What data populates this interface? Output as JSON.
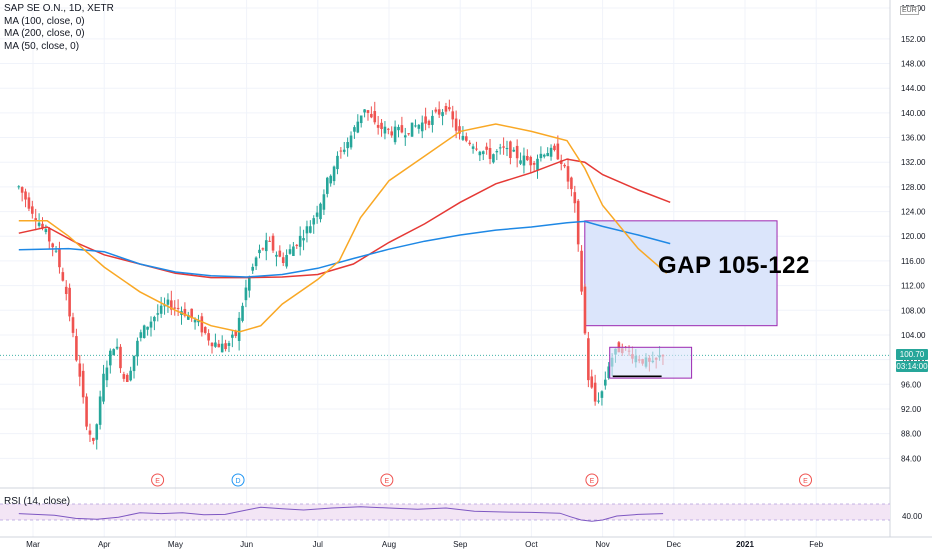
{
  "header": {
    "symbol_line": "SAP SE O.N., 1D, XETR",
    "indicators": [
      "MA (100, close, 0)",
      "MA (200, close, 0)",
      "MA (50, close, 0)"
    ],
    "currency": "EUR"
  },
  "annotation": {
    "gap_label": "GAP 105-122"
  },
  "rsi": {
    "label": "RSI (14, close)"
  },
  "price_tags": {
    "close": "100.70",
    "other": "03:14:00"
  },
  "colors": {
    "up": "#26a69a",
    "down": "#ef5350",
    "ma100": "#e53935",
    "ma200": "#1e88e5",
    "ma50": "#f9a825",
    "gap_fill": "#dbe5fb",
    "gap_stroke": "#9c27b0",
    "rsi_line": "#7e57c2"
  },
  "event_markers": [
    {
      "letter": "E",
      "month_pos": 1.75
    },
    {
      "letter": "D",
      "month_pos": 2.88
    },
    {
      "letter": "E",
      "month_pos": 4.97
    },
    {
      "letter": "E",
      "month_pos": 7.85
    },
    {
      "letter": "E",
      "month_pos": 10.85
    }
  ],
  "chart_data": {
    "type": "candlestick",
    "y_axis": {
      "min": 80,
      "max": 157,
      "unit": "EUR",
      "ticks": [
        "84.00",
        "88.00",
        "92.00",
        "96.00",
        "100.00",
        "104.00",
        "108.00",
        "112.00",
        "116.00",
        "120.00",
        "124.00",
        "128.00",
        "132.00",
        "136.00",
        "140.00",
        "144.00",
        "148.00",
        "152.00",
        "157.00"
      ]
    },
    "x_axis": {
      "ticks": [
        "Mar",
        "Apr",
        "May",
        "Jun",
        "Jul",
        "Aug",
        "Sep",
        "Oct",
        "Nov",
        "Dec",
        "2021",
        "Feb"
      ]
    },
    "price_path": [
      [
        -0.2,
        128
      ],
      [
        0.1,
        122
      ],
      [
        0.3,
        118
      ],
      [
        0.45,
        112
      ],
      [
        0.6,
        101
      ],
      [
        0.75,
        90
      ],
      [
        0.85,
        86
      ],
      [
        1.0,
        98
      ],
      [
        1.15,
        103
      ],
      [
        1.3,
        96
      ],
      [
        1.5,
        104
      ],
      [
        1.7,
        107
      ],
      [
        1.9,
        109
      ],
      [
        2.1,
        108
      ],
      [
        2.3,
        106
      ],
      [
        2.5,
        103
      ],
      [
        2.7,
        102
      ],
      [
        2.85,
        104
      ],
      [
        3.0,
        112
      ],
      [
        3.15,
        117
      ],
      [
        3.3,
        119
      ],
      [
        3.5,
        116
      ],
      [
        3.7,
        119
      ],
      [
        3.9,
        122
      ],
      [
        4.05,
        126
      ],
      [
        4.2,
        131
      ],
      [
        4.35,
        134
      ],
      [
        4.5,
        137
      ],
      [
        4.65,
        141
      ],
      [
        4.8,
        138
      ],
      [
        5.0,
        137
      ],
      [
        5.2,
        137
      ],
      [
        5.4,
        138
      ],
      [
        5.6,
        139
      ],
      [
        5.8,
        141
      ],
      [
        6.0,
        136
      ],
      [
        6.2,
        135
      ],
      [
        6.4,
        133
      ],
      [
        6.6,
        134
      ],
      [
        6.8,
        133
      ],
      [
        7.0,
        132
      ],
      [
        7.2,
        134
      ],
      [
        7.4,
        133
      ],
      [
        7.6,
        126
      ],
      [
        7.7,
        112
      ],
      [
        7.8,
        97
      ],
      [
        7.9,
        93
      ],
      [
        8.0,
        95
      ],
      [
        8.1,
        100
      ],
      [
        8.25,
        102
      ],
      [
        8.4,
        101
      ],
      [
        8.55,
        100
      ],
      [
        8.7,
        99
      ],
      [
        8.85,
        101
      ]
    ],
    "series": [
      {
        "name": "MA (100, close, 0)",
        "points": [
          [
            -0.2,
            120.5
          ],
          [
            0.2,
            121.5
          ],
          [
            0.6,
            119
          ],
          [
            1.0,
            117
          ],
          [
            1.5,
            115.5
          ],
          [
            2.0,
            114
          ],
          [
            2.5,
            113.3
          ],
          [
            3.0,
            113.3
          ],
          [
            3.5,
            113.4
          ],
          [
            4.0,
            113.8
          ],
          [
            4.5,
            115.5
          ],
          [
            5.0,
            119
          ],
          [
            5.5,
            122
          ],
          [
            6.0,
            125.5
          ],
          [
            6.5,
            128.5
          ],
          [
            7.0,
            130.3
          ],
          [
            7.5,
            132.5
          ],
          [
            7.75,
            132
          ],
          [
            8.0,
            130
          ],
          [
            8.5,
            127.5
          ],
          [
            8.95,
            125.5
          ]
        ]
      },
      {
        "name": "MA (200, close, 0)",
        "points": [
          [
            -0.2,
            117.8
          ],
          [
            0.5,
            118
          ],
          [
            1.0,
            117.5
          ],
          [
            1.5,
            115.5
          ],
          [
            2.0,
            114.2
          ],
          [
            2.5,
            113.6
          ],
          [
            3.0,
            113.4
          ],
          [
            3.5,
            113.8
          ],
          [
            4.0,
            114.8
          ],
          [
            4.5,
            116.4
          ],
          [
            5.0,
            117.9
          ],
          [
            5.5,
            119.2
          ],
          [
            6.0,
            120.2
          ],
          [
            6.5,
            121
          ],
          [
            7.0,
            121.5
          ],
          [
            7.5,
            122.2
          ],
          [
            7.75,
            122.4
          ],
          [
            8.0,
            121.6
          ],
          [
            8.5,
            120.2
          ],
          [
            8.95,
            118.8
          ]
        ]
      },
      {
        "name": "MA (50, close, 0)",
        "points": [
          [
            -0.2,
            122.5
          ],
          [
            0.2,
            122.5
          ],
          [
            0.5,
            120
          ],
          [
            1.0,
            115
          ],
          [
            1.5,
            111
          ],
          [
            2.0,
            108
          ],
          [
            2.5,
            105.5
          ],
          [
            2.9,
            104.5
          ],
          [
            3.2,
            105.5
          ],
          [
            3.5,
            109
          ],
          [
            4.0,
            113
          ],
          [
            4.3,
            116
          ],
          [
            4.6,
            123
          ],
          [
            5.0,
            129
          ],
          [
            5.5,
            133
          ],
          [
            6.0,
            137
          ],
          [
            6.5,
            138.2
          ],
          [
            7.0,
            137
          ],
          [
            7.5,
            135.5
          ],
          [
            7.75,
            131
          ],
          [
            8.0,
            125
          ],
          [
            8.5,
            118
          ],
          [
            8.9,
            114
          ]
        ]
      },
      {
        "name": "RSI (14, close)",
        "points": [
          [
            -0.2,
            46
          ],
          [
            0.3,
            42
          ],
          [
            0.6,
            34
          ],
          [
            0.9,
            32
          ],
          [
            1.2,
            37
          ],
          [
            1.5,
            48
          ],
          [
            1.8,
            46
          ],
          [
            2.1,
            48
          ],
          [
            2.4,
            43
          ],
          [
            2.7,
            44
          ],
          [
            3.0,
            55
          ],
          [
            3.2,
            62
          ],
          [
            3.5,
            58
          ],
          [
            3.8,
            55
          ],
          [
            4.2,
            60
          ],
          [
            4.6,
            63
          ],
          [
            5.0,
            60
          ],
          [
            5.4,
            57
          ],
          [
            5.8,
            60
          ],
          [
            6.2,
            52
          ],
          [
            6.6,
            50
          ],
          [
            7.0,
            49
          ],
          [
            7.4,
            47
          ],
          [
            7.55,
            38
          ],
          [
            7.7,
            30
          ],
          [
            7.85,
            27
          ],
          [
            8.0,
            30
          ],
          [
            8.2,
            40
          ],
          [
            8.5,
            44
          ],
          [
            8.85,
            46
          ]
        ]
      }
    ],
    "rsi_axis": {
      "ticks": [
        "40.00"
      ],
      "band": [
        30,
        70
      ]
    },
    "gap_box": {
      "x_start": 7.75,
      "x_end": 10.45,
      "y_low": 105.5,
      "y_high": 122.5
    },
    "consolidation_box": {
      "x_start": 8.1,
      "x_end": 9.25,
      "y_low": 97,
      "y_high": 102,
      "support": 97.3
    }
  }
}
